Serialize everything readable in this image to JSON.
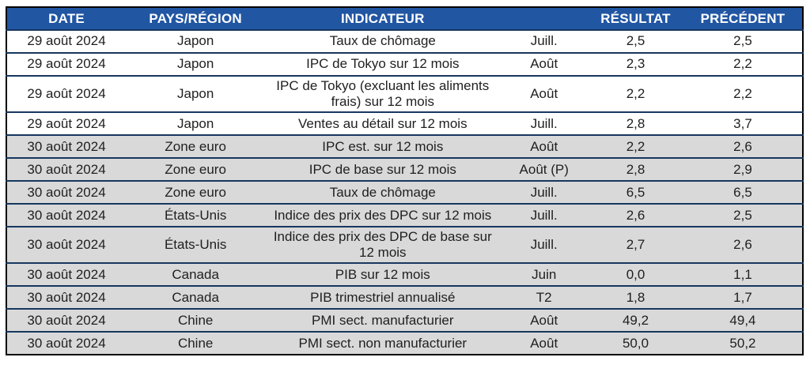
{
  "colors": {
    "header_bg": "#2156A3",
    "header_text": "#FFFFFF",
    "row_bg": "#FFFFFF",
    "row_shaded_bg": "#D9D9D9",
    "separator": "#17375E",
    "frame": "#000000",
    "text": "#1F1F1F",
    "page_bg": "#FFFFFF"
  },
  "table": {
    "columns": [
      {
        "key": "date",
        "label": "DATE"
      },
      {
        "key": "region",
        "label": "PAYS/RÉGION"
      },
      {
        "key": "indicator",
        "label": "INDICATEUR"
      },
      {
        "key": "period",
        "label": ""
      },
      {
        "key": "result",
        "label": "RÉSULTAT"
      },
      {
        "key": "previous",
        "label": "PRÉCÉDENT"
      }
    ],
    "rows": [
      {
        "date": "29 août 2024",
        "region": "Japon",
        "indicator": "Taux de chômage",
        "period": "Juill.",
        "result": "2,5",
        "previous": "2,5",
        "shaded": false
      },
      {
        "date": "29 août 2024",
        "region": "Japon",
        "indicator": "IPC de Tokyo sur 12 mois",
        "period": "Août",
        "result": "2,3",
        "previous": "2,2",
        "shaded": false
      },
      {
        "date": "29 août 2024",
        "region": "Japon",
        "indicator": "IPC de Tokyo (excluant les aliments frais) sur 12 mois",
        "period": "Août",
        "result": "2,2",
        "previous": "2,2",
        "shaded": false
      },
      {
        "date": "29 août 2024",
        "region": "Japon",
        "indicator": "Ventes au détail sur 12 mois",
        "period": "Juill.",
        "result": "2,8",
        "previous": "3,7",
        "shaded": false
      },
      {
        "date": "30 août 2024",
        "region": "Zone euro",
        "indicator": "IPC est. sur 12 mois",
        "period": "Août",
        "result": "2,2",
        "previous": "2,6",
        "shaded": true
      },
      {
        "date": "30 août 2024",
        "region": "Zone euro",
        "indicator": "IPC de base sur 12 mois",
        "period": "Août (P)",
        "result": "2,8",
        "previous": "2,9",
        "shaded": true
      },
      {
        "date": "30 août 2024",
        "region": "Zone euro",
        "indicator": "Taux de chômage",
        "period": "Juill.",
        "result": "6,5",
        "previous": "6,5",
        "shaded": true
      },
      {
        "date": "30 août 2024",
        "region": "États-Unis",
        "indicator": "Indice des prix des DPC sur 12 mois",
        "period": "Juill.",
        "result": "2,6",
        "previous": "2,5",
        "shaded": true
      },
      {
        "date": "30 août 2024",
        "region": "États-Unis",
        "indicator": "Indice des prix des DPC de base sur 12 mois",
        "period": "Juill.",
        "result": "2,7",
        "previous": "2,6",
        "shaded": true
      },
      {
        "date": "30 août 2024",
        "region": "Canada",
        "indicator": "PIB sur 12 mois",
        "period": "Juin",
        "result": "0,0",
        "previous": "1,1",
        "shaded": true
      },
      {
        "date": "30 août 2024",
        "region": "Canada",
        "indicator": "PIB trimestriel annualisé",
        "period": "T2",
        "result": "1,8",
        "previous": "1,7",
        "shaded": true
      },
      {
        "date": "30 août 2024",
        "region": "Chine",
        "indicator": "PMI sect. manufacturier",
        "period": "Août",
        "result": "49,2",
        "previous": "49,4",
        "shaded": true
      },
      {
        "date": "30 août 2024",
        "region": "Chine",
        "indicator": "PMI sect. non manufacturier",
        "period": "Août",
        "result": "50,0",
        "previous": "50,2",
        "shaded": true
      }
    ]
  }
}
